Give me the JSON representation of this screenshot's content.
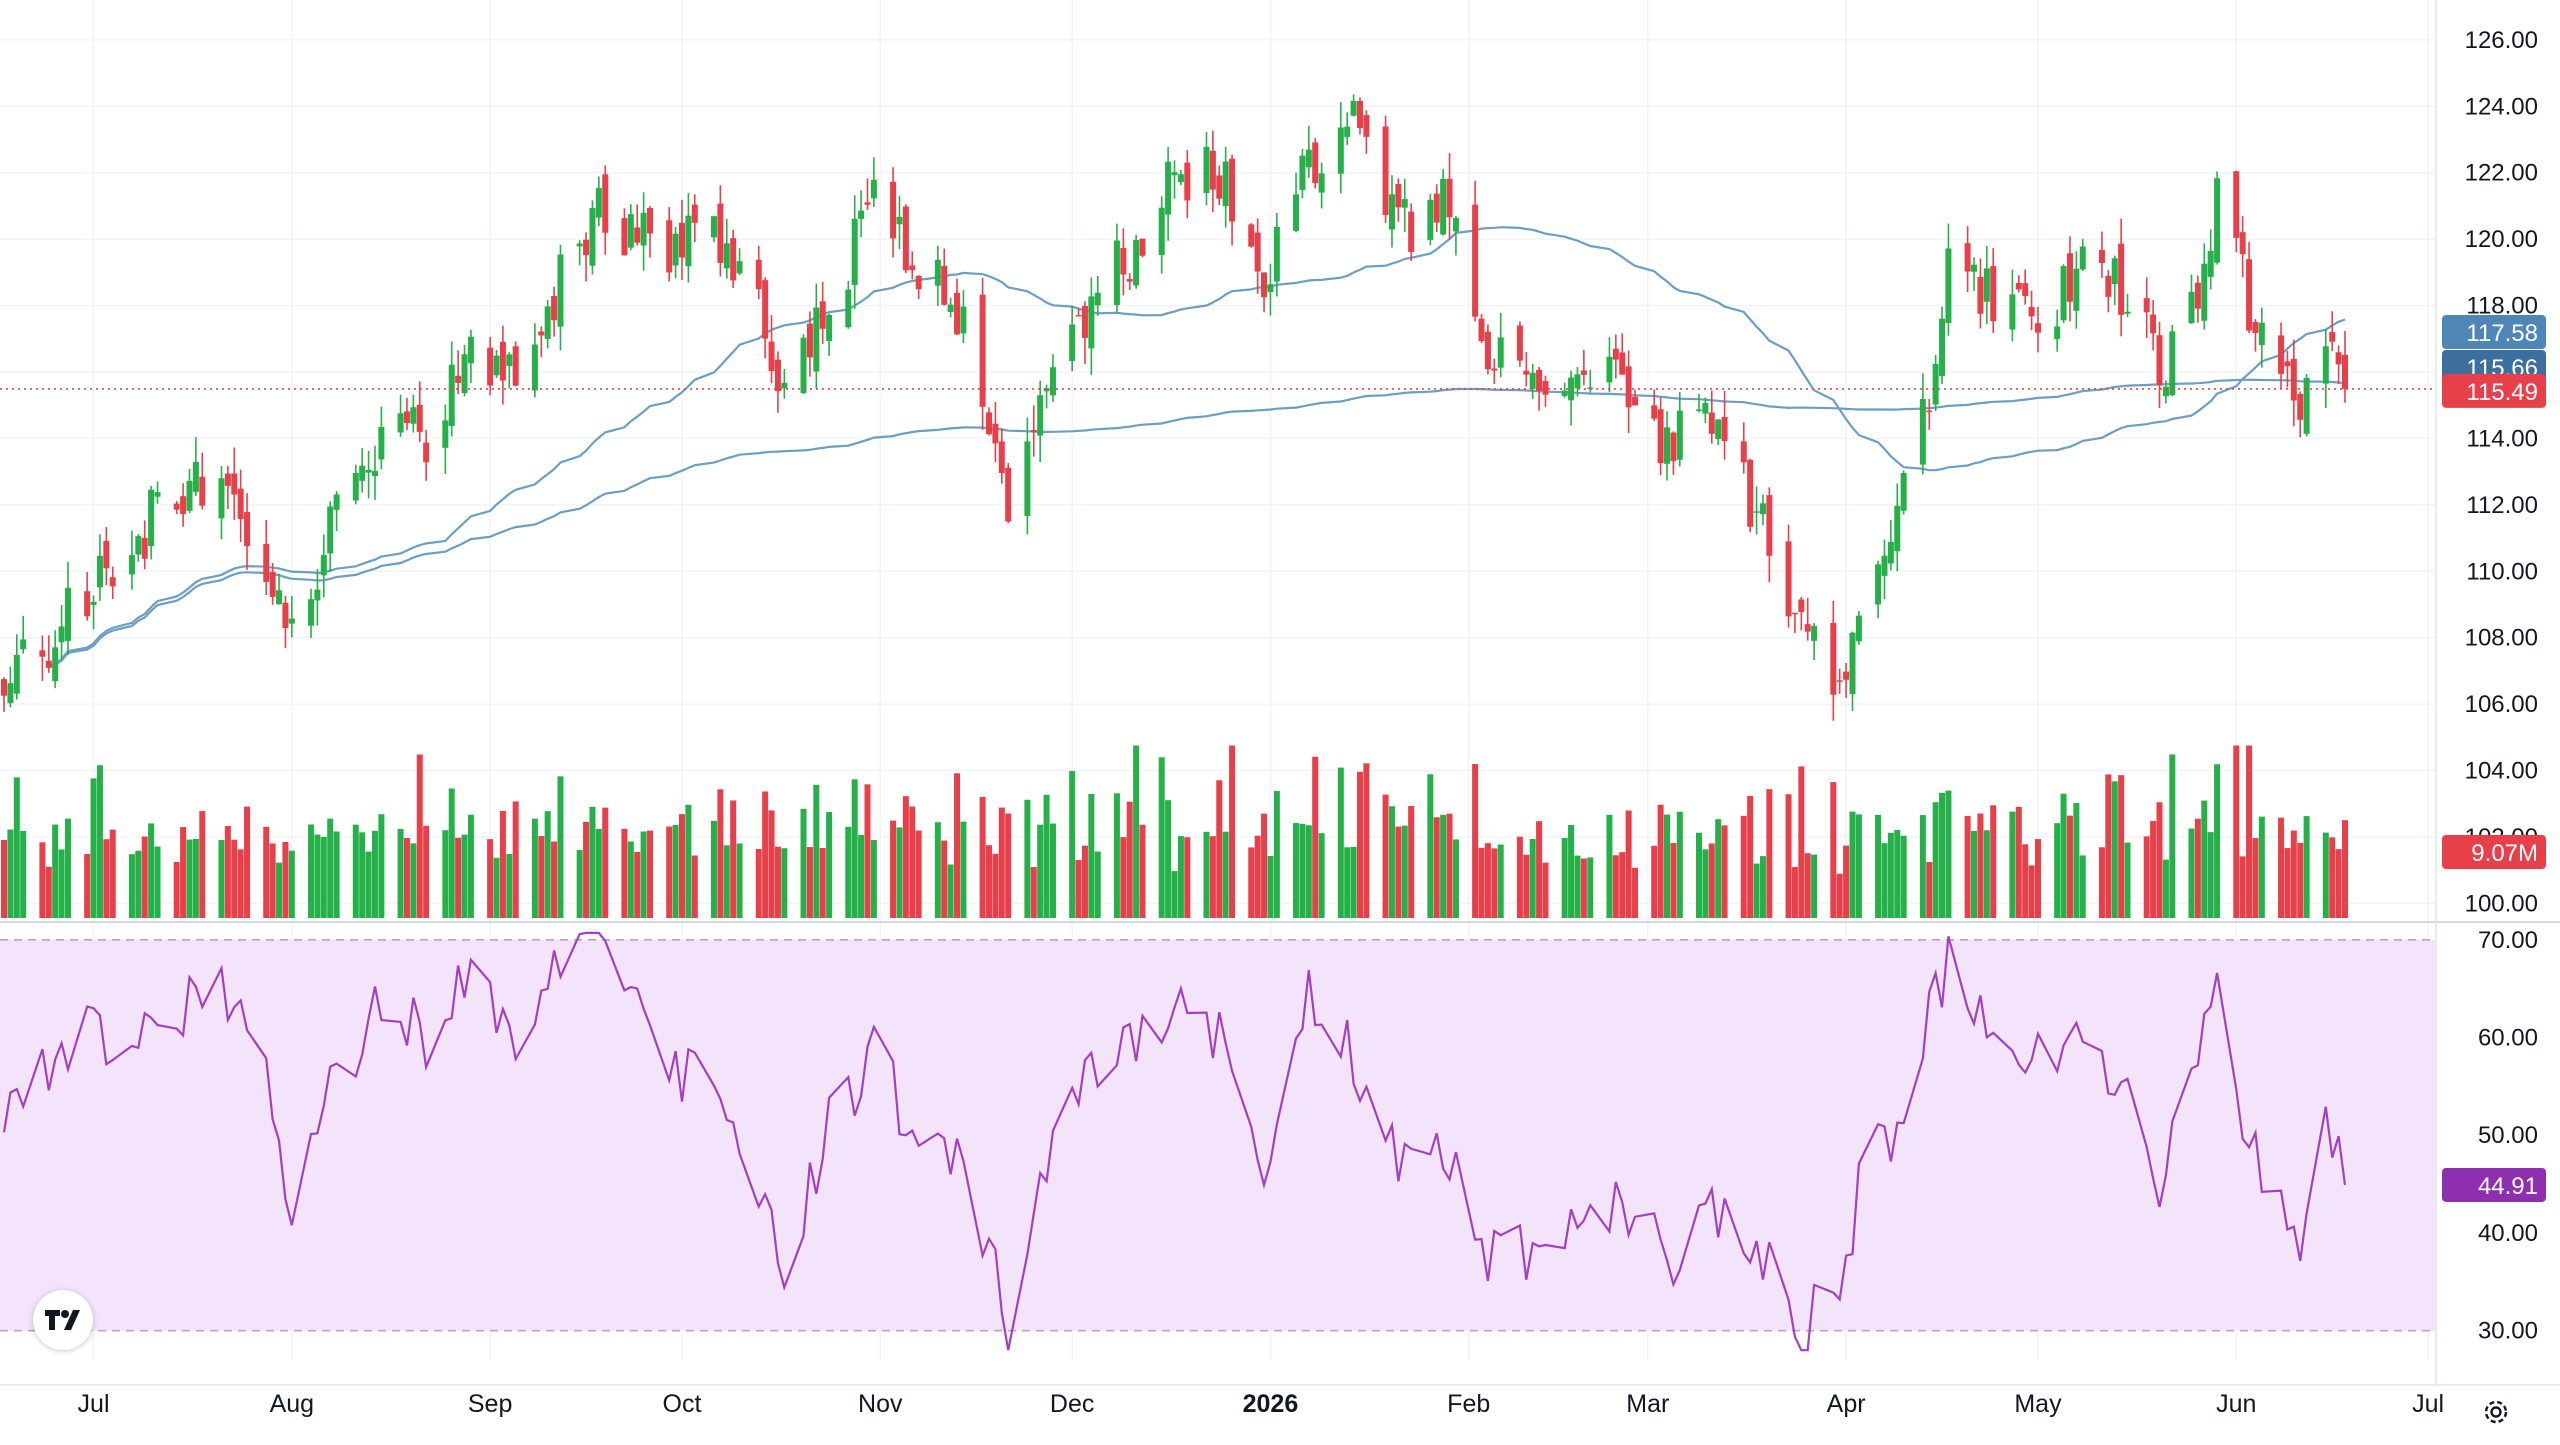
{
  "colors": {
    "up": "#26b04a",
    "down": "#e8404a",
    "ma_line": "#6c9ec4",
    "rsi_line": "#a33fc4",
    "rsi_band": "#f3e3fb",
    "last_price": "#e8404a",
    "ma50_label": "#4f86b8",
    "ma200_label": "#3d6f9e",
    "rsi_label": "#8e2fb0",
    "grid": "#f0f3fa",
    "axis_text": "#131722"
  },
  "icons": {
    "logo": "tradingview-logo-icon",
    "settings": "gear-icon"
  },
  "chart_data": [
    {
      "type": "candlestick",
      "start_date": "2025-06-16",
      "ylim": [
        99.5,
        127.2
      ],
      "price_ticks": [
        "100.00",
        "102.00",
        "104.00",
        "106.00",
        "108.00",
        "110.00",
        "112.00",
        "114.00",
        "116.00",
        "118.00",
        "120.00",
        "122.00",
        "124.00",
        "126.00"
      ],
      "x_labels": [
        {
          "label": "Jul",
          "date": "2025-07-01",
          "bold": false
        },
        {
          "label": "Aug",
          "date": "2025-08-01",
          "bold": false
        },
        {
          "label": "Sep",
          "date": "2025-09-01",
          "bold": false
        },
        {
          "label": "Oct",
          "date": "2025-10-01",
          "bold": false
        },
        {
          "label": "Nov",
          "date": "2025-11-01",
          "bold": false
        },
        {
          "label": "Dec",
          "date": "2025-12-01",
          "bold": false
        },
        {
          "label": "2026",
          "date": "2026-01-01",
          "bold": true
        },
        {
          "label": "Feb",
          "date": "2026-02-01",
          "bold": false
        },
        {
          "label": "Mar",
          "date": "2026-03-01",
          "bold": false
        },
        {
          "label": "Apr",
          "date": "2026-04-01",
          "bold": false
        },
        {
          "label": "May",
          "date": "2026-05-01",
          "bold": false
        },
        {
          "label": "Jun",
          "date": "2026-06-01",
          "bold": false
        },
        {
          "label": "Jul",
          "date": "2026-07-01",
          "bold": false
        }
      ],
      "close_anchors": [
        [
          "2025-06-16",
          106.2
        ],
        [
          "2025-06-23",
          107.8
        ],
        [
          "2025-06-30",
          109.6
        ],
        [
          "2025-07-07",
          111.2
        ],
        [
          "2025-07-14",
          111.8
        ],
        [
          "2025-07-21",
          113.2
        ],
        [
          "2025-07-28",
          110.6
        ],
        [
          "2025-08-01",
          108.2
        ],
        [
          "2025-08-08",
          111.6
        ],
        [
          "2025-08-15",
          114.4
        ],
        [
          "2025-08-22",
          114.0
        ],
        [
          "2025-08-29",
          116.8
        ],
        [
          "2025-09-05",
          115.6
        ],
        [
          "2025-09-12",
          119.0
        ],
        [
          "2025-09-19",
          121.0
        ],
        [
          "2025-09-26",
          119.6
        ],
        [
          "2025-10-03",
          120.4
        ],
        [
          "2025-10-10",
          119.2
        ],
        [
          "2025-10-17",
          115.6
        ],
        [
          "2025-10-24",
          118.4
        ],
        [
          "2025-10-31",
          120.8
        ],
        [
          "2025-11-07",
          119.4
        ],
        [
          "2025-11-14",
          117.6
        ],
        [
          "2025-11-21",
          112.4
        ],
        [
          "2025-11-26",
          114.6
        ],
        [
          "2025-12-03",
          117.6
        ],
        [
          "2025-12-10",
          119.6
        ],
        [
          "2025-12-17",
          122.0
        ],
        [
          "2025-12-24",
          121.8
        ],
        [
          "2025-12-31",
          118.8
        ],
        [
          "2026-01-07",
          122.2
        ],
        [
          "2026-01-13",
          123.8
        ],
        [
          "2026-01-21",
          120.2
        ],
        [
          "2026-01-28",
          121.6
        ],
        [
          "2026-02-04",
          116.8
        ],
        [
          "2026-02-11",
          116.4
        ],
        [
          "2026-02-18",
          115.2
        ],
        [
          "2026-02-25",
          115.8
        ],
        [
          "2026-03-04",
          113.8
        ],
        [
          "2026-03-11",
          114.8
        ],
        [
          "2026-03-18",
          111.6
        ],
        [
          "2026-03-25",
          108.2
        ],
        [
          "2026-03-30",
          106.4
        ],
        [
          "2026-04-03",
          108.6
        ],
        [
          "2026-04-09",
          112.2
        ],
        [
          "2026-04-14",
          115.4
        ],
        [
          "2026-04-17",
          119.6
        ],
        [
          "2026-04-24",
          118.0
        ],
        [
          "2026-05-01",
          117.4
        ],
        [
          "2026-05-08",
          119.2
        ],
        [
          "2026-05-15",
          118.4
        ],
        [
          "2026-05-20",
          116.0
        ],
        [
          "2026-05-26",
          118.8
        ],
        [
          "2026-05-29",
          121.0
        ],
        [
          "2026-06-03",
          118.2
        ],
        [
          "2026-06-08",
          116.0
        ],
        [
          "2026-06-11",
          114.2
        ],
        [
          "2026-06-15",
          116.8
        ],
        [
          "2026-06-18",
          115.49
        ]
      ],
      "last_price": 115.49,
      "ma50_last": 117.58,
      "ma200_last": 115.66,
      "volume_last": "9.07M",
      "series_labels": {
        "last": "115.49",
        "ma50": "117.58",
        "ma200": "115.66",
        "volume": "9.07M"
      }
    },
    {
      "type": "line",
      "indicator": "RSI",
      "ylim": [
        27,
        71
      ],
      "band": [
        30,
        70
      ],
      "ticks": [
        "30.00",
        "40.00",
        "50.00",
        "60.00",
        "70.00"
      ],
      "rsi_anchors": [
        [
          "2025-06-16",
          49
        ],
        [
          "2025-06-23",
          57
        ],
        [
          "2025-06-30",
          61
        ],
        [
          "2025-07-07",
          58
        ],
        [
          "2025-07-14",
          63
        ],
        [
          "2025-07-21",
          66
        ],
        [
          "2025-07-28",
          56
        ],
        [
          "2025-08-01",
          42
        ],
        [
          "2025-08-08",
          56
        ],
        [
          "2025-08-15",
          63
        ],
        [
          "2025-08-22",
          60
        ],
        [
          "2025-08-29",
          66
        ],
        [
          "2025-09-05",
          59
        ],
        [
          "2025-09-12",
          67
        ],
        [
          "2025-09-19",
          70
        ],
        [
          "2025-09-26",
          59
        ],
        [
          "2025-10-03",
          55
        ],
        [
          "2025-10-10",
          50
        ],
        [
          "2025-10-17",
          37
        ],
        [
          "2025-10-24",
          51
        ],
        [
          "2025-10-31",
          58
        ],
        [
          "2025-11-07",
          50
        ],
        [
          "2025-11-14",
          47
        ],
        [
          "2025-11-21",
          31
        ],
        [
          "2025-11-26",
          45
        ],
        [
          "2025-12-03",
          56
        ],
        [
          "2025-12-10",
          59
        ],
        [
          "2025-12-17",
          63
        ],
        [
          "2025-12-24",
          61
        ],
        [
          "2025-12-31",
          44
        ],
        [
          "2026-01-07",
          64
        ],
        [
          "2026-01-13",
          60
        ],
        [
          "2026-01-21",
          48
        ],
        [
          "2026-01-28",
          50
        ],
        [
          "2026-02-04",
          37
        ],
        [
          "2026-02-11",
          38
        ],
        [
          "2026-02-18",
          40
        ],
        [
          "2026-02-25",
          44
        ],
        [
          "2026-03-04",
          37
        ],
        [
          "2026-03-11",
          43
        ],
        [
          "2026-03-18",
          38
        ],
        [
          "2026-03-25",
          31
        ],
        [
          "2026-03-30",
          32
        ],
        [
          "2026-04-03",
          44
        ],
        [
          "2026-04-09",
          52
        ],
        [
          "2026-04-14",
          62
        ],
        [
          "2026-04-17",
          67
        ],
        [
          "2026-04-24",
          59
        ],
        [
          "2026-05-01",
          57
        ],
        [
          "2026-05-08",
          61
        ],
        [
          "2026-05-15",
          55
        ],
        [
          "2026-05-20",
          43
        ],
        [
          "2026-05-26",
          60
        ],
        [
          "2026-05-29",
          64
        ],
        [
          "2026-06-03",
          48
        ],
        [
          "2026-06-08",
          42
        ],
        [
          "2026-06-11",
          38
        ],
        [
          "2026-06-15",
          53
        ],
        [
          "2026-06-18",
          44.91
        ]
      ],
      "last_value": 44.91,
      "last_label": "44.91"
    }
  ]
}
